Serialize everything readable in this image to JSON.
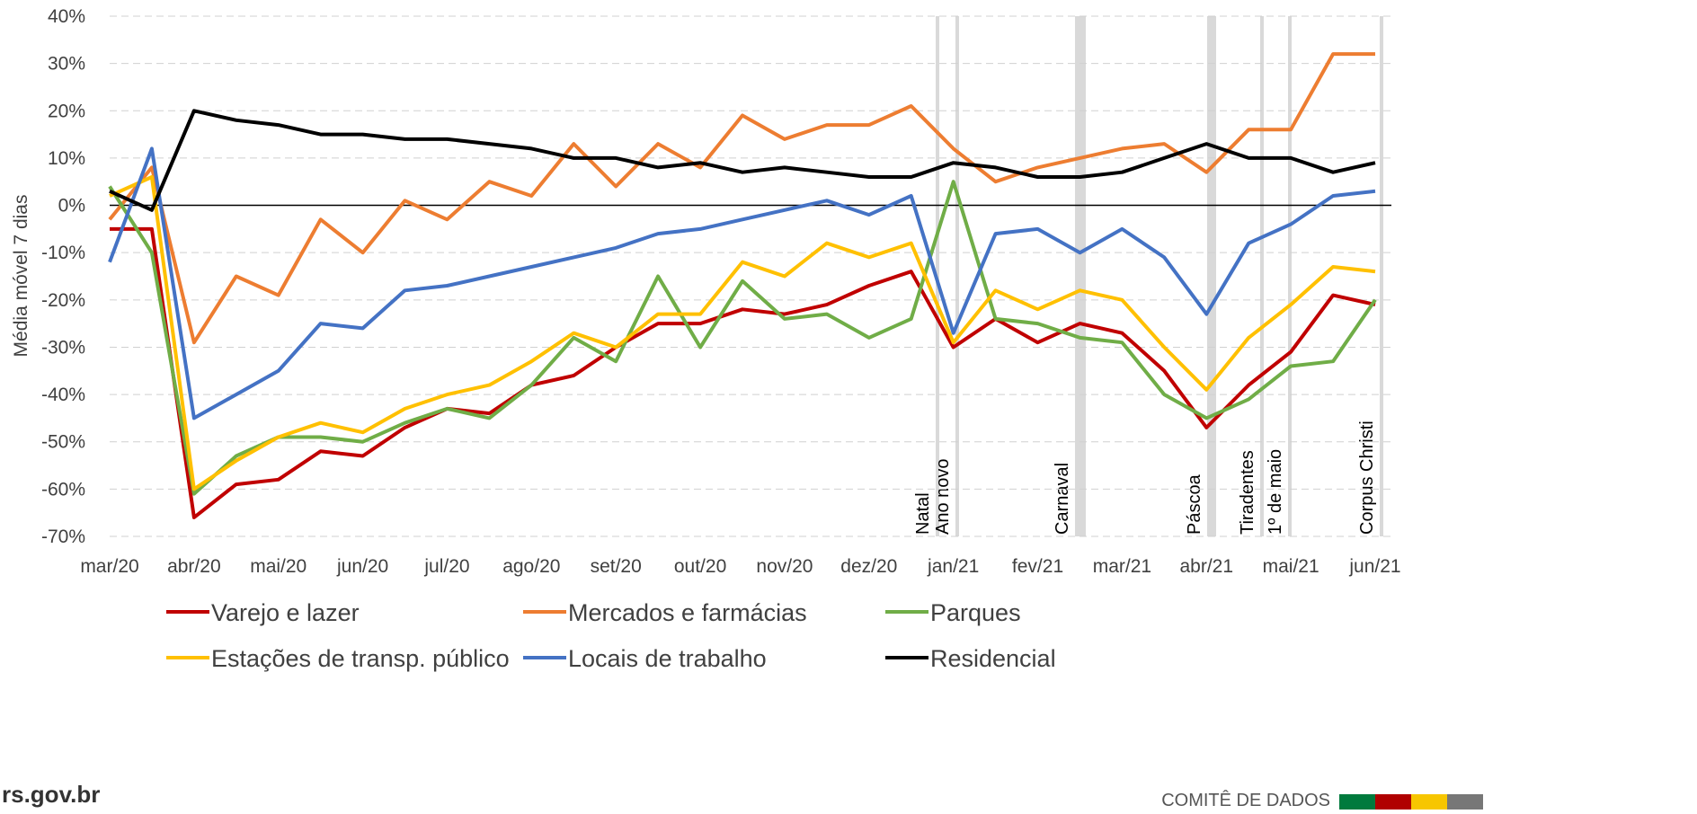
{
  "chart_data": {
    "type": "line",
    "y_label": "Média móvel 7 dias",
    "categories": [
      "mar/20",
      null,
      "abr/20",
      null,
      "mai/20",
      null,
      "jun/20",
      null,
      "jul/20",
      null,
      "ago/20",
      null,
      "set/20",
      null,
      "out/20",
      null,
      "nov/20",
      null,
      "dez/20",
      null,
      "jan/21",
      null,
      "fev/21",
      null,
      "mar/21",
      null,
      "abr/21",
      null,
      "mai/21",
      null,
      "jun/21"
    ],
    "series": [
      {
        "name": "Varejo e lazer",
        "color": "#c00000",
        "values": [
          -5,
          -5,
          -66,
          -59,
          -58,
          -52,
          -53,
          -47,
          -43,
          -44,
          -38,
          -36,
          -30,
          -25,
          -25,
          -22,
          -23,
          -21,
          -17,
          -14,
          -30,
          -24,
          -29,
          -25,
          -27,
          -35,
          -47,
          -38,
          -31,
          -19,
          -21
        ]
      },
      {
        "name": "Mercados e farmácias",
        "color": "#ed7d31",
        "values": [
          -3,
          8,
          -29,
          -15,
          -19,
          -3,
          -10,
          1,
          -3,
          5,
          2,
          13,
          4,
          13,
          8,
          19,
          14,
          17,
          17,
          21,
          12,
          5,
          8,
          10,
          12,
          13,
          7,
          16,
          16,
          32,
          32
        ]
      },
      {
        "name": "Parques",
        "color": "#70ad47",
        "values": [
          4,
          -10,
          -61,
          -53,
          -49,
          -49,
          -50,
          -46,
          -43,
          -45,
          -38,
          -28,
          -33,
          -15,
          -30,
          -16,
          -24,
          -23,
          -28,
          -24,
          5,
          -24,
          -25,
          -28,
          -29,
          -40,
          -45,
          -41,
          -34,
          -33,
          -20
        ]
      },
      {
        "name": "Estações de transp. público",
        "color": "#ffc000",
        "values": [
          2,
          6,
          -60,
          -54,
          -49,
          -46,
          -48,
          -43,
          -40,
          -38,
          -33,
          -27,
          -30,
          -23,
          -23,
          -12,
          -15,
          -8,
          -11,
          -8,
          -29,
          -18,
          -22,
          -18,
          -20,
          -30,
          -39,
          -28,
          -21,
          -13,
          -14
        ]
      },
      {
        "name": "Locais de trabalho",
        "color": "#4472c4",
        "values": [
          -12,
          12,
          -45,
          -40,
          -35,
          -25,
          -26,
          -18,
          -17,
          -15,
          -13,
          -11,
          -9,
          -6,
          -5,
          -3,
          -1,
          1,
          -2,
          2,
          -27,
          -6,
          -5,
          -10,
          -5,
          -11,
          -23,
          -8,
          -4,
          2,
          3
        ]
      },
      {
        "name": "Residencial",
        "color": "#000000",
        "values": [
          3,
          -1,
          20,
          18,
          17,
          15,
          15,
          14,
          14,
          13,
          12,
          10,
          10,
          8,
          9,
          7,
          8,
          7,
          6,
          6,
          9,
          8,
          6,
          6,
          7,
          10,
          13,
          10,
          10,
          7,
          9
        ]
      }
    ],
    "ylim": [
      -70,
      40
    ],
    "yticks": [
      {
        "value": -70,
        "label": "-70%"
      },
      {
        "value": -60,
        "label": "-60%"
      },
      {
        "value": -50,
        "label": "-50%"
      },
      {
        "value": -40,
        "label": "-40%"
      },
      {
        "value": -30,
        "label": "-30%"
      },
      {
        "value": -20,
        "label": "-20%"
      },
      {
        "value": -10,
        "label": "-10%"
      },
      {
        "value": 0,
        "label": "0%"
      },
      {
        "value": 10,
        "label": "10%"
      },
      {
        "value": 20,
        "label": "20%"
      },
      {
        "value": 30,
        "label": "30%"
      },
      {
        "value": 40,
        "label": "40%"
      }
    ],
    "grid": true,
    "annotations": [
      "Natal",
      "Ano novo",
      "Carnaval",
      "Páscoa",
      "Tiradentes",
      "1º de maio",
      "Corpus Christi"
    ]
  },
  "footer": {
    "site": "rs.gov.br",
    "committee": "COMITÊ DE DADOS"
  }
}
